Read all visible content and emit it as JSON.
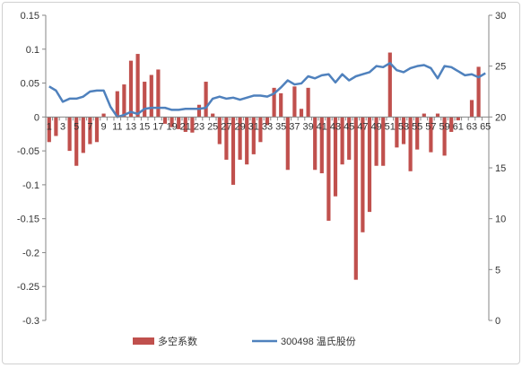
{
  "chart_data": {
    "type": "bar+line",
    "title": "",
    "x": [
      1,
      2,
      3,
      4,
      5,
      6,
      7,
      8,
      9,
      10,
      11,
      12,
      13,
      14,
      15,
      16,
      17,
      18,
      19,
      20,
      21,
      22,
      23,
      24,
      25,
      26,
      27,
      28,
      29,
      30,
      31,
      32,
      33,
      34,
      35,
      36,
      37,
      38,
      39,
      40,
      41,
      42,
      43,
      44,
      45,
      46,
      47,
      48,
      49,
      50,
      51,
      52,
      53,
      54,
      55,
      56,
      57,
      58,
      59,
      60,
      61,
      62,
      63,
      64,
      65
    ],
    "x_tick_labels": [
      "1",
      "3",
      "5",
      "7",
      "9",
      "11",
      "13",
      "15",
      "17",
      "19",
      "21",
      "23",
      "25",
      "27",
      "29",
      "31",
      "33",
      "35",
      "37",
      "39",
      "41",
      "43",
      "45",
      "47",
      "49",
      "51",
      "53",
      "55",
      "57",
      "59",
      "61",
      "63",
      "65"
    ],
    "left_axis": {
      "min": -0.3,
      "max": 0.15,
      "step": 0.05,
      "tick_labels": [
        "0.15",
        "0.1",
        "0.05",
        "0",
        "-0.05",
        "-0.1",
        "-0.15",
        "-0.2",
        "-0.25",
        "-0.3"
      ]
    },
    "right_axis": {
      "min": 0,
      "max": 30,
      "step": 5,
      "tick_labels": [
        "30",
        "25",
        "20",
        "15",
        "10",
        "5",
        "0"
      ]
    },
    "series": [
      {
        "name": "多空系数",
        "type": "bar",
        "axis": "left",
        "color": "#c0504d",
        "values": [
          -0.037,
          -0.028,
          0,
          -0.05,
          -0.072,
          -0.053,
          -0.04,
          -0.037,
          0.005,
          0,
          0.038,
          0.048,
          0.083,
          0.093,
          0.052,
          0.062,
          0.07,
          -0.01,
          -0.015,
          -0.018,
          -0.022,
          -0.023,
          0.018,
          0.052,
          0.005,
          -0.04,
          -0.063,
          -0.1,
          -0.063,
          -0.07,
          -0.055,
          -0.037,
          -0.012,
          0.043,
          0.035,
          -0.078,
          0.045,
          0.012,
          0.043,
          -0.078,
          -0.083,
          -0.153,
          -0.117,
          -0.07,
          -0.063,
          -0.24,
          -0.17,
          -0.14,
          -0.072,
          -0.072,
          0.095,
          -0.045,
          -0.04,
          -0.08,
          -0.048,
          0.005,
          -0.052,
          0.005,
          -0.057,
          -0.022,
          -0.005,
          0,
          0.025,
          0.074,
          0
        ]
      },
      {
        "name": "300498 温氏股份",
        "type": "line",
        "axis": "right",
        "color": "#4f81bd",
        "values": [
          23.0,
          22.6,
          21.5,
          21.8,
          21.8,
          22.0,
          22.5,
          22.6,
          22.6,
          21.0,
          20.0,
          20.2,
          20.5,
          20.3,
          20.8,
          20.9,
          20.9,
          20.9,
          20.7,
          20.7,
          20.8,
          20.8,
          20.8,
          20.9,
          21.8,
          22.0,
          21.8,
          21.9,
          21.7,
          21.9,
          22.1,
          22.1,
          22.0,
          22.3,
          22.9,
          23.6,
          23.2,
          23.3,
          24.0,
          23.8,
          24.1,
          24.2,
          23.4,
          24.2,
          23.6,
          24.0,
          24.2,
          24.4,
          25.0,
          24.9,
          25.3,
          24.6,
          24.4,
          24.8,
          25.0,
          25.1,
          24.8,
          23.8,
          25.0,
          24.9,
          24.5,
          24.1,
          24.2,
          23.9,
          24.3
        ]
      }
    ],
    "legend": {
      "placement": "bottom"
    },
    "grid": false
  }
}
